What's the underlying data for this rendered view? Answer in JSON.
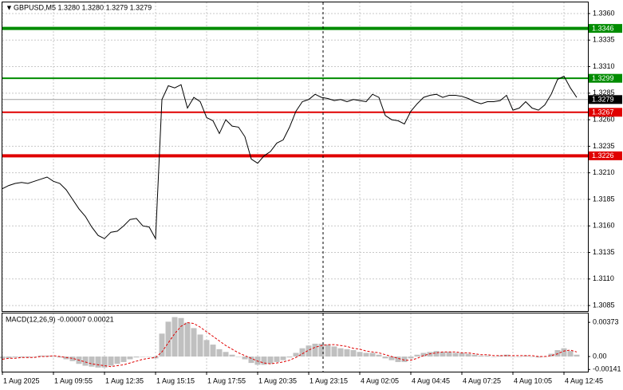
{
  "chart_data": [
    {
      "type": "line",
      "title": "GBPUSD,M5  1.3280 1.3280 1.3279 1.3279",
      "color": "#000000",
      "grid": true,
      "categories": [
        "1 Aug 2025",
        null,
        null,
        null,
        null,
        null,
        null,
        null,
        "1 Aug 09:55",
        null,
        null,
        null,
        null,
        null,
        null,
        null,
        "1 Aug 12:35",
        null,
        null,
        null,
        null,
        null,
        null,
        null,
        "1 Aug 15:15",
        null,
        null,
        null,
        null,
        null,
        null,
        null,
        "1 Aug 17:55",
        null,
        null,
        null,
        null,
        null,
        null,
        null,
        "1 Aug 20:35",
        null,
        null,
        null,
        null,
        null,
        null,
        null,
        "1 Aug 23:15",
        null,
        null,
        null,
        null,
        null,
        null,
        null,
        "4 Aug 02:05",
        null,
        null,
        null,
        null,
        null,
        null,
        null,
        "4 Aug 04:45",
        null,
        null,
        null,
        null,
        null,
        null,
        null,
        "4 Aug 07:25",
        null,
        null,
        null,
        null,
        null,
        null,
        null,
        "4 Aug 10:05",
        null,
        null,
        null,
        null,
        null,
        null,
        null,
        "4 Aug 12:45",
        null,
        null
      ],
      "values": [
        1.3195,
        1.3198,
        1.32,
        1.3201,
        1.32,
        1.3202,
        1.3204,
        1.3206,
        1.3202,
        1.32,
        1.3194,
        1.3185,
        1.3176,
        1.3169,
        1.3159,
        1.3151,
        1.3148,
        1.3154,
        1.3155,
        1.316,
        1.3166,
        1.3167,
        1.316,
        1.3159,
        1.3148,
        1.3279,
        1.3292,
        1.329,
        1.3293,
        1.3271,
        1.3281,
        1.3277,
        1.3262,
        1.3259,
        1.3247,
        1.326,
        1.3254,
        1.3253,
        1.3244,
        1.3223,
        1.3219,
        1.3226,
        1.323,
        1.3238,
        1.3241,
        1.3253,
        1.3268,
        1.3277,
        1.3279,
        1.3284,
        1.3281,
        1.328,
        1.3278,
        1.3279,
        1.3277,
        1.3279,
        1.3278,
        1.3277,
        1.3284,
        1.3281,
        1.3264,
        1.326,
        1.3259,
        1.3256,
        1.3268,
        1.3275,
        1.3281,
        1.3283,
        1.3284,
        1.3281,
        1.3283,
        1.3283,
        1.3282,
        1.328,
        1.3277,
        1.3275,
        1.3277,
        1.3277,
        1.3278,
        1.3283,
        1.3269,
        1.3271,
        1.3277,
        1.3271,
        1.3269,
        1.3274,
        1.3284,
        1.3298,
        1.3301,
        1.329,
        1.3281
      ],
      "ylim": [
        1.30798,
        1.33705
      ],
      "yticks": [
        {
          "value": 1.336,
          "label": "1.3360"
        },
        1.3335,
        {
          "value": 1.331,
          "label": "1.3310"
        },
        1.3285,
        {
          "value": 1.326,
          "label": "1.3260"
        },
        1.3235,
        {
          "value": 1.321,
          "label": "1.3210"
        },
        1.3185,
        {
          "value": 1.316,
          "label": "1.3160"
        },
        1.3135,
        {
          "value": 1.311,
          "label": "1.3110"
        },
        1.3085
      ],
      "levels": [
        {
          "value": 1.3346,
          "color": "#008c00",
          "thick": true
        },
        {
          "value": 1.3299,
          "color": "#008c00",
          "thick": false
        },
        {
          "value": 1.3267,
          "color": "#e00000",
          "thick": false
        },
        {
          "value": 1.3226,
          "color": "#e00000",
          "thick": true
        }
      ],
      "last": 1.3279
    },
    {
      "type": "macd",
      "title": "MACD(12,26,9) -0.00007 0.00021",
      "color": "#c0c0c0",
      "signal_color": "#e00000",
      "values": [
        -0.0002,
        -0.0002,
        -0.0001,
        -0.0001,
        -0.0001,
        0,
        0.0001,
        0.0001,
        0,
        -0.0001,
        -0.0003,
        -0.0005,
        -0.0008,
        -0.001,
        -0.0011,
        -0.0012,
        -0.0012,
        -0.001,
        -0.0008,
        -0.0006,
        -0.0003,
        -0.0001,
        0,
        0,
        -0.0002,
        0.0025,
        0.0038,
        0.0043,
        0.0042,
        0.0037,
        0.0031,
        0.0024,
        0.0018,
        0.0013,
        0.0008,
        0.0005,
        0.0002,
        0,
        -0.0003,
        -0.0007,
        -0.0009,
        -0.0009,
        -0.0008,
        -0.0006,
        -0.0004,
        -0.0001,
        0.0004,
        0.0009,
        0.0012,
        0.0014,
        0.0014,
        0.0013,
        0.0011,
        0.0009,
        0.0008,
        0.0007,
        0.0005,
        0.0004,
        0.0004,
        0.0002,
        -0.0002,
        -0.0004,
        -0.0006,
        -0.0006,
        -0.0002,
        0.0002,
        0.0004,
        0.0005,
        0.0006,
        0.0005,
        0.0005,
        0.0004,
        0.0004,
        0.0003,
        0.0002,
        0.0001,
        0.0001,
        0,
        0.0001,
        0.0002,
        0,
        0,
        0.0001,
        0,
        -0.0001,
        0,
        0.0003,
        0.0007,
        0.0009,
        0.0006,
        0.0002
      ],
      "signal": [
        -0.0003,
        -0.0002,
        -0.0002,
        -0.0001,
        -0.0001,
        -0.0001,
        0,
        0,
        0.0001,
        0,
        -0.0001,
        -0.0002,
        -0.0004,
        -0.0006,
        -0.0008,
        -0.0009,
        -0.001,
        -0.0011,
        -0.001,
        -0.0009,
        -0.0007,
        -0.0005,
        -0.0003,
        -0.0002,
        -0.0001,
        0.0005,
        0.0015,
        0.0025,
        0.0033,
        0.0037,
        0.0036,
        0.0032,
        0.0027,
        0.0022,
        0.0017,
        0.0012,
        0.0008,
        0.0004,
        0.0001,
        -0.0002,
        -0.0005,
        -0.0007,
        -0.0008,
        -0.0007,
        -0.0006,
        -0.0004,
        -0.0001,
        0.0003,
        0.0007,
        0.001,
        0.0012,
        0.0013,
        0.0013,
        0.0012,
        0.0011,
        0.0009,
        0.0008,
        0.0006,
        0.0005,
        0.0004,
        0.0002,
        0,
        -0.0002,
        -0.0004,
        -0.0004,
        -0.0002,
        0.0001,
        0.0003,
        0.0004,
        0.0005,
        0.0005,
        0.0005,
        0.0004,
        0.0004,
        0.0003,
        0.0002,
        0.0002,
        0.0001,
        0.0001,
        0.0001,
        0.0001,
        0.0001,
        0.0001,
        0.0001,
        0,
        0,
        0.0001,
        0.0003,
        0.0006,
        0.0007,
        0.0005
      ],
      "ylim": [
        -0.00165,
        0.0047
      ],
      "yticks": [
        0.00373,
        {
          "value": 0,
          "label": "0.00"
        },
        -0.00141
      ]
    }
  ]
}
